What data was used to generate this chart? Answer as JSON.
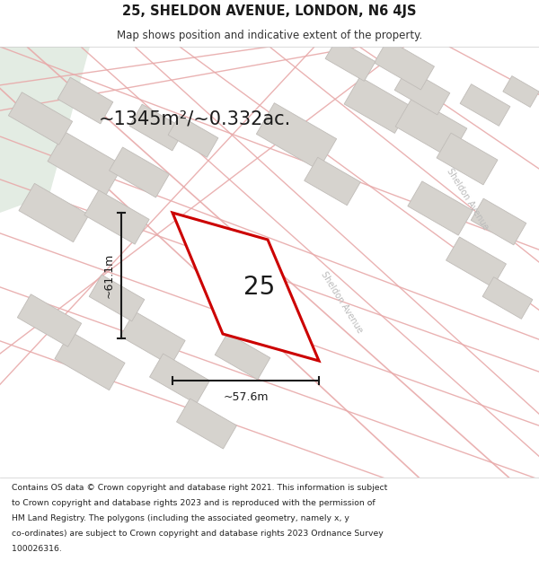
{
  "title_line1": "25, SHELDON AVENUE, LONDON, N6 4JS",
  "title_line2": "Map shows position and indicative extent of the property.",
  "area_text": "~1345m²/~0.332ac.",
  "property_number": "25",
  "dim_height": "~61.1m",
  "dim_width": "~57.6m",
  "street_label1": "Sheldon Avenue",
  "street_label2": "Sheldon Avenue",
  "footer_lines": [
    "Contains OS data © Crown copyright and database right 2021. This information is subject",
    "to Crown copyright and database rights 2023 and is reproduced with the permission of",
    "HM Land Registry. The polygons (including the associated geometry, namely x, y",
    "co-ordinates) are subject to Crown copyright and database rights 2023 Ordnance Survey",
    "100026316."
  ],
  "bg_map_color": "#f5f4f1",
  "bg_green_color": "#e3ece3",
  "plot_outline_color": "#cc0000",
  "road_line_color": "#e8aaaa",
  "building_fill": "#d6d3ce",
  "building_edge": "#c0bcb8",
  "dim_line_color": "#1a1a1a",
  "text_color": "#1a1a1a",
  "header_bg": "#ffffff",
  "footer_bg": "#ffffff",
  "street_text_color": "#bbbbbb"
}
